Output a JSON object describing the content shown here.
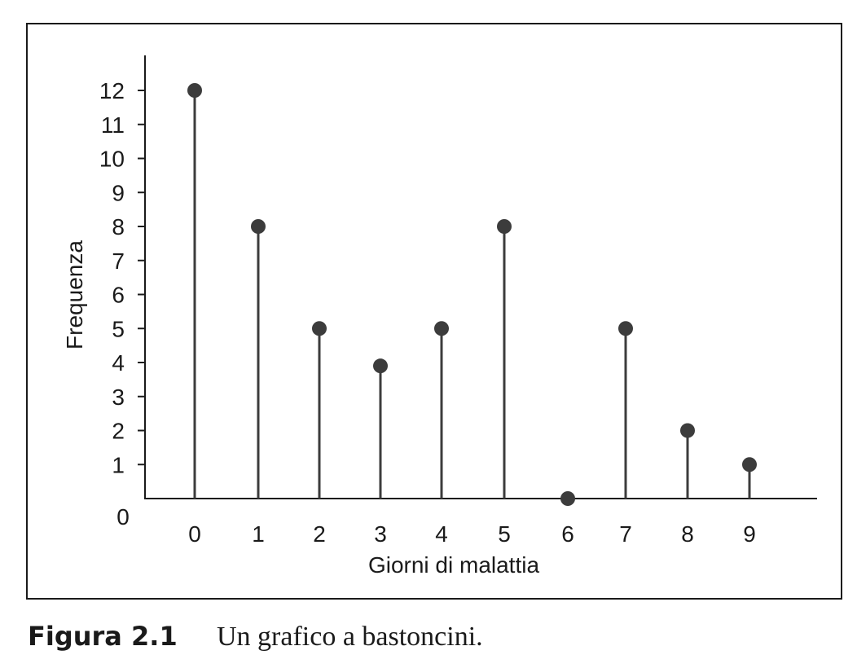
{
  "chart_data": {
    "type": "stem",
    "categories": [
      "0",
      "1",
      "2",
      "3",
      "4",
      "5",
      "6",
      "7",
      "8",
      "9"
    ],
    "x": [
      0,
      1,
      2,
      3,
      4,
      5,
      6,
      7,
      8,
      9
    ],
    "values": [
      12,
      8,
      5,
      3.9,
      5,
      8,
      0,
      5,
      2,
      1
    ],
    "yticks": [
      "0",
      "1",
      "2",
      "3",
      "4",
      "5",
      "6",
      "7",
      "8",
      "9",
      "10",
      "11",
      "12"
    ],
    "xlabel": "Giorni di malattia",
    "ylabel": "Frequenza",
    "ylim": [
      0,
      12
    ],
    "grid": false,
    "colors": {
      "stem": "#3c3c3c",
      "marker": "#3c3c3c",
      "axis": "#1a1a1a"
    }
  },
  "caption": {
    "label": "Figura 2.1",
    "text": "Un grafico a bastoncini."
  }
}
